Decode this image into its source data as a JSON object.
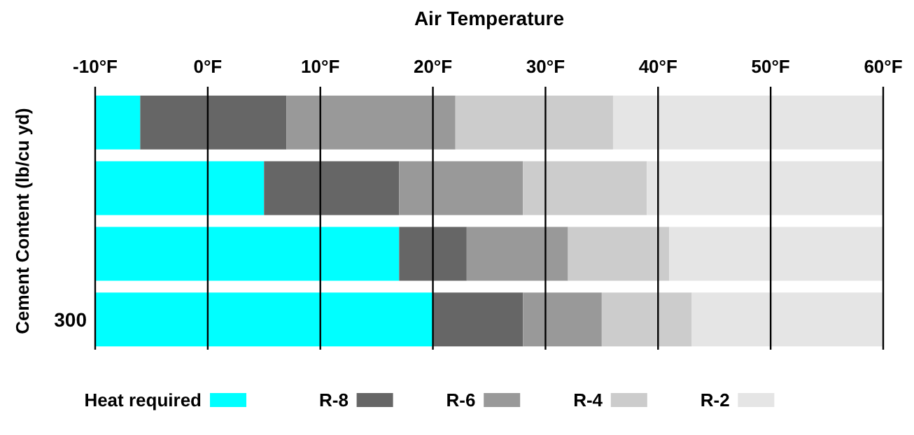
{
  "chart_data": {
    "type": "bar",
    "orientation": "horizontal",
    "xlabel": "Air Temperature",
    "ylabel": "Cement Content (lb/cu yd)",
    "categories": [
      null,
      null,
      null,
      "300"
    ],
    "series": [
      {
        "name": "Heat required",
        "color": "#00ffff",
        "base": [
          -10,
          -10,
          -10,
          -10
        ],
        "values": [
          4,
          15,
          27,
          30
        ]
      },
      {
        "name": "R-8",
        "color": "#666666",
        "base": [
          -6,
          5,
          17,
          20
        ],
        "values": [
          13,
          12,
          6,
          8
        ]
      },
      {
        "name": "R-6",
        "color": "#999999",
        "base": [
          7,
          17,
          23,
          28
        ],
        "values": [
          15,
          11,
          9,
          7
        ]
      },
      {
        "name": "R-4",
        "color": "#cccccc",
        "base": [
          22,
          28,
          32,
          35
        ],
        "values": [
          14,
          11,
          9,
          8
        ]
      },
      {
        "name": "R-2",
        "color": "#e5e5e5",
        "base": [
          36,
          39,
          41,
          43
        ],
        "values": [
          24,
          21,
          19,
          17
        ]
      }
    ],
    "xlim": [
      -10,
      60
    ],
    "xticks": [
      {
        "value": -10,
        "label": "-10°F"
      },
      {
        "value": 0,
        "label": "0°F"
      },
      {
        "value": 10,
        "label": "10°F"
      },
      {
        "value": 20,
        "label": "20°F"
      },
      {
        "value": 30,
        "label": "30°F"
      },
      {
        "value": 40,
        "label": "40°F"
      },
      {
        "value": 50,
        "label": "50°F"
      },
      {
        "value": 60,
        "label": "60°F"
      }
    ],
    "grid": "x",
    "legend": "bottom"
  }
}
